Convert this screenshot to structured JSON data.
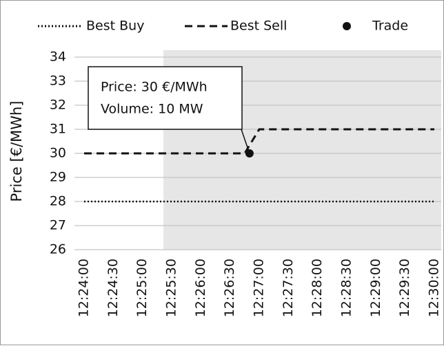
{
  "chart_data": {
    "type": "line",
    "y_label": "Price [€/MWh]",
    "xlim": [
      "12:24:00",
      "12:30:00"
    ],
    "xticks": [
      "12:24:00",
      "12:24:30",
      "12:25:00",
      "12:25:30",
      "12:26:00",
      "12:26:30",
      "12:27:00",
      "12:27:30",
      "12:28:00",
      "12:28:30",
      "12:29:00",
      "12:29:30",
      "12:30:00"
    ],
    "ylim": [
      26,
      34
    ],
    "yticks": [
      26,
      27,
      28,
      29,
      30,
      31,
      32,
      33,
      34
    ],
    "grid": true,
    "shaded_region": [
      "12:25:30",
      "12:30:00"
    ],
    "series": [
      {
        "name": "Best Buy",
        "color": "#111111",
        "style": "dotted",
        "x": [
          "12:24:00",
          "12:30:00"
        ],
        "values": [
          28,
          28
        ]
      },
      {
        "name": "Best Sell",
        "color": "#111111",
        "style": "dashed",
        "x": [
          "12:24:00",
          "12:26:45",
          "12:27:00",
          "12:30:00"
        ],
        "values": [
          30,
          30,
          31,
          31
        ]
      },
      {
        "name": "Trade",
        "color": "#111111",
        "style": "marker",
        "x": [
          "12:26:50"
        ],
        "values": [
          30
        ]
      }
    ],
    "annotation": {
      "lines": [
        "Price: 30 €/MWh",
        "Volume: 10 MW"
      ]
    }
  }
}
